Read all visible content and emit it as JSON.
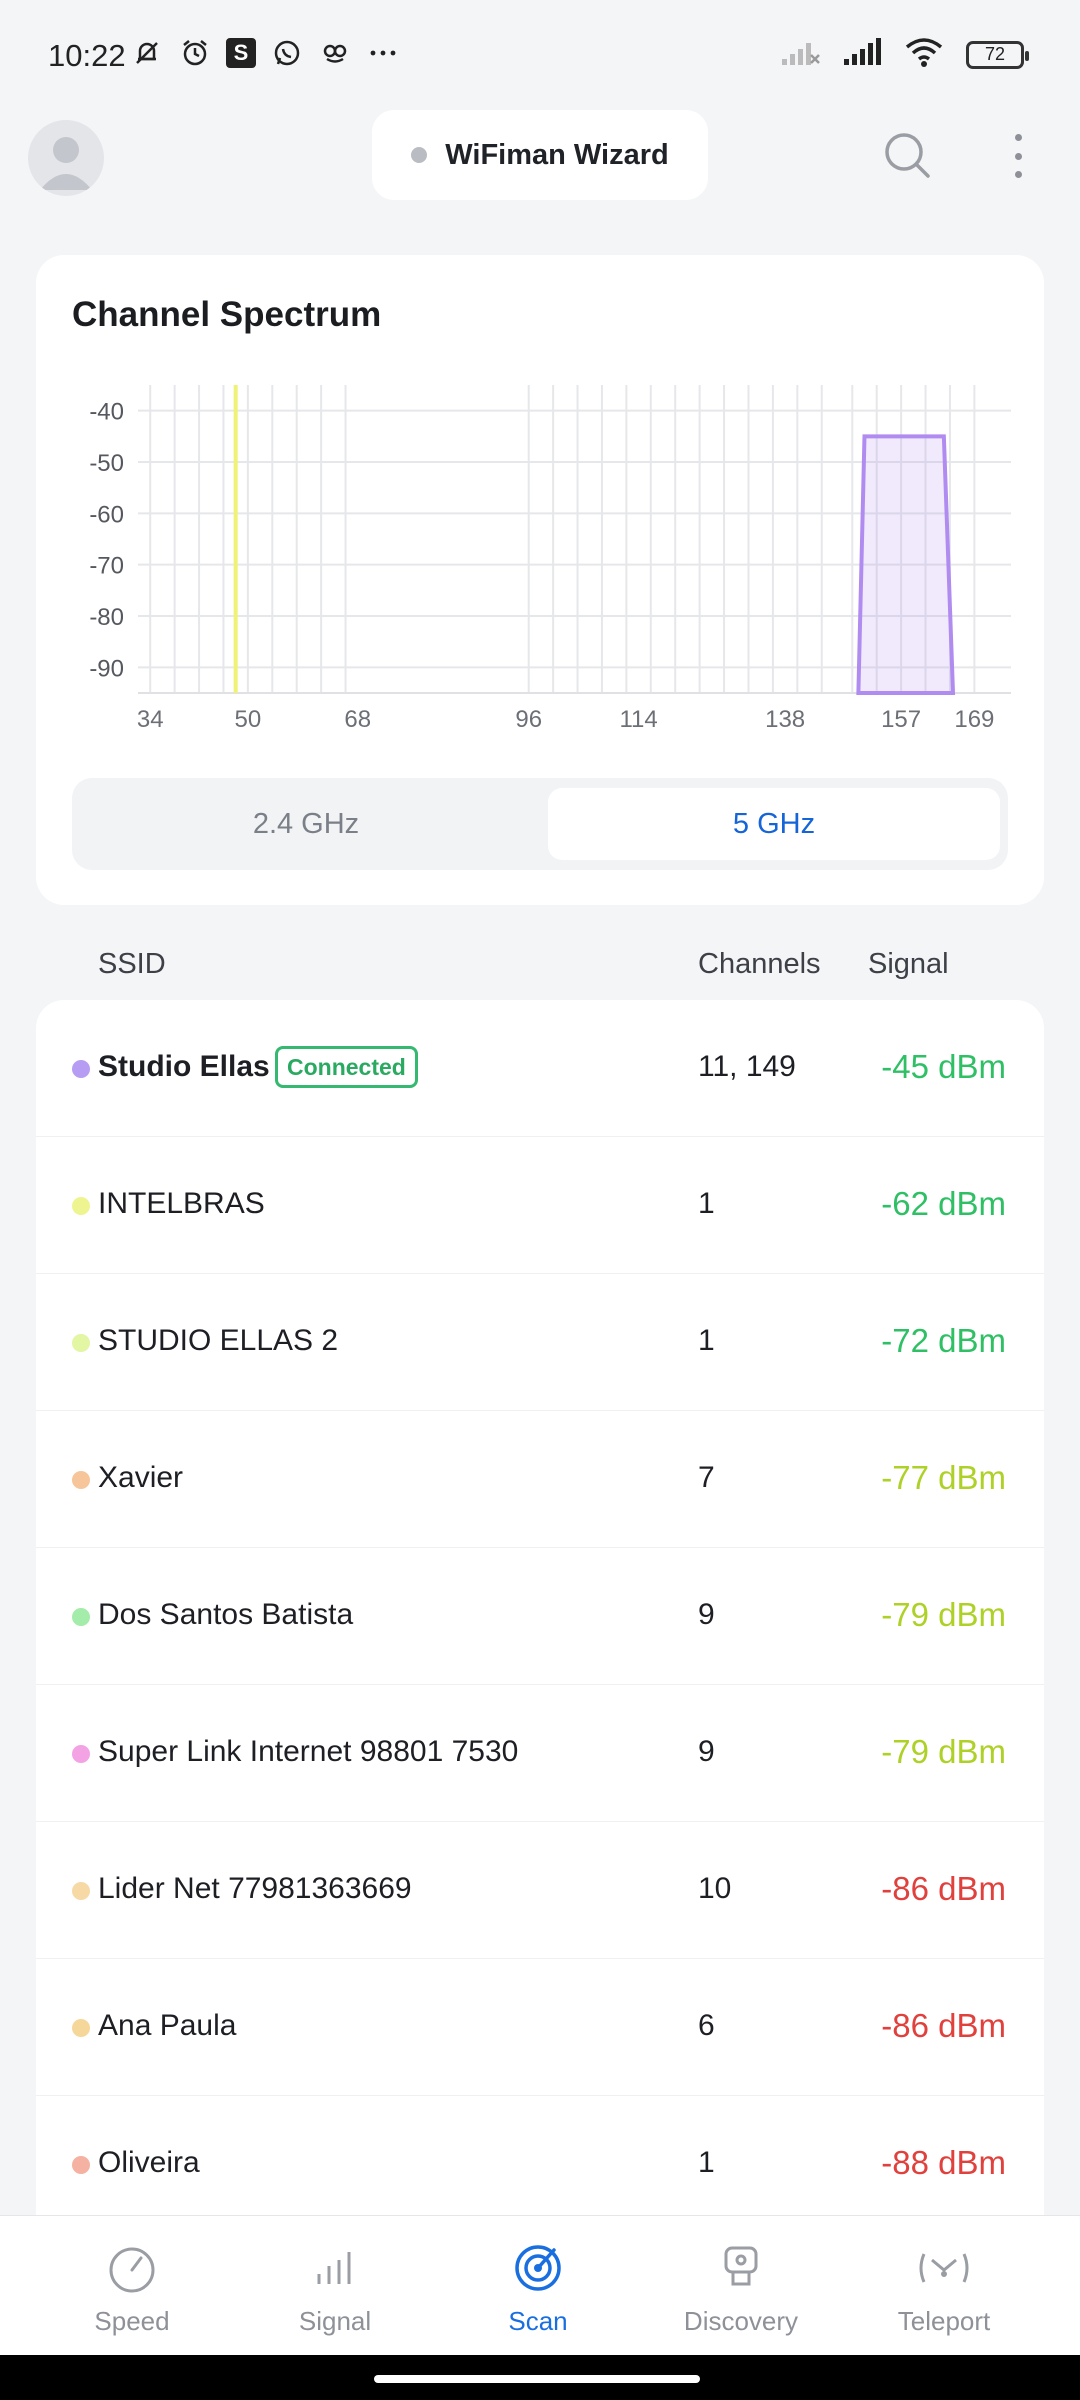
{
  "status_bar": {
    "time": "10:22",
    "battery": "72"
  },
  "header": {
    "wizard_label": "WiFiman Wizard"
  },
  "spectrum": {
    "title": "Channel Spectrum",
    "bands": [
      "2.4 GHz",
      "5 GHz"
    ],
    "selected_band": "5 GHz",
    "chart_data": {
      "type": "area",
      "title": "Channel Spectrum",
      "x_ticks": [
        "34",
        "50",
        "68",
        "96",
        "114",
        "138",
        "157",
        "169"
      ],
      "y_ticks": [
        "-40",
        "-50",
        "-60",
        "-70",
        "-80",
        "-90"
      ],
      "ylim": [
        -95,
        -35
      ],
      "xlim": [
        32,
        175
      ],
      "series": [
        {
          "name": "Studio Ellas",
          "color": "#b18cf0",
          "points": [
            [
              150,
              -95
            ],
            [
              151,
              -45
            ],
            [
              164,
              -45
            ],
            [
              165.5,
              -95
            ]
          ]
        },
        {
          "color": "#f0f275",
          "points": [
            [
              48,
              -95
            ],
            [
              48,
              -35
            ]
          ]
        }
      ]
    }
  },
  "columns": {
    "ssid": "SSID",
    "channels": "Channels",
    "signal": "Signal"
  },
  "networks": [
    {
      "name": "Studio Ellas",
      "connected": true,
      "badge": "Connected",
      "channels": "11, 149",
      "signal": "-45 dBm",
      "dot": "#b69cf2",
      "sig_color": "#2fbf64"
    },
    {
      "name": "INTELBRAS",
      "channels": "1",
      "signal": "-62 dBm",
      "dot": "#eef590",
      "sig_color": "#2fbf64"
    },
    {
      "name": "STUDIO ELLAS 2",
      "channels": "1",
      "signal": "-72 dBm",
      "dot": "#e2f6a4",
      "sig_color": "#2fbf64"
    },
    {
      "name": "Xavier",
      "channels": "7",
      "signal": "-77 dBm",
      "dot": "#f7c59a",
      "sig_color": "#aed128"
    },
    {
      "name": "Dos Santos Batista",
      "channels": "9",
      "signal": "-79 dBm",
      "dot": "#a3ecaa",
      "sig_color": "#aed128"
    },
    {
      "name": "Super Link Internet 98801 7530",
      "channels": "9",
      "signal": "-79 dBm",
      "dot": "#f3a3e3",
      "sig_color": "#aed128"
    },
    {
      "name": "Lider Net 77981363669",
      "channels": "10",
      "signal": "-86 dBm",
      "dot": "#f7d9a6",
      "sig_color": "#e0413d"
    },
    {
      "name": "Ana Paula",
      "channels": "6",
      "signal": "-86 dBm",
      "dot": "#f6d79a",
      "sig_color": "#e0413d"
    },
    {
      "name": "Oliveira",
      "channels": "1",
      "signal": "-88 dBm",
      "dot": "#f5b1a1",
      "sig_color": "#e0413d"
    }
  ],
  "nav": [
    {
      "label": "Speed",
      "icon": "speedometer-icon"
    },
    {
      "label": "Signal",
      "icon": "signal-bars-icon"
    },
    {
      "label": "Scan",
      "icon": "radar-icon",
      "active": true
    },
    {
      "label": "Discovery",
      "icon": "device-discovery-icon"
    },
    {
      "label": "Teleport",
      "icon": "teleport-icon"
    }
  ]
}
